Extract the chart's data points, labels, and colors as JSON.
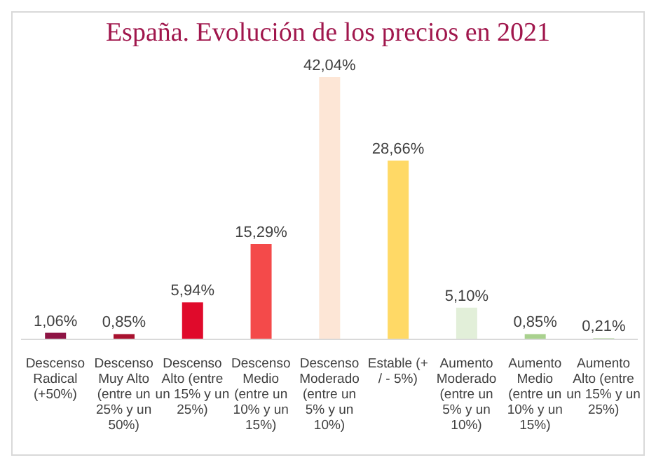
{
  "chart_data": {
    "type": "bar",
    "title": "España. Evolución de los precios en 2021",
    "categories": [
      "Descenso Radical (+50%)",
      "Descenso Muy Alto (entre un 25% y un 50%)",
      "Descenso Alto (entre un 15% y un 25%)",
      "Descenso Medio (entre un 10% y un 15%)",
      "Descenso Moderado (entre un 5% y un 10%)",
      "Estable (+ / - 5%)",
      "Aumento Moderado (entre un 5% y un 10%)",
      "Aumento Medio (entre un 10% y un 15%)",
      "Aumento Alto (entre un 15% y un 25%)"
    ],
    "values": [
      1.06,
      0.85,
      5.94,
      15.29,
      42.04,
      28.66,
      5.1,
      0.85,
      0.21
    ],
    "value_labels": [
      "1,06%",
      "0,85%",
      "5,94%",
      "15,29%",
      "42,04%",
      "28,66%",
      "5,10%",
      "0,85%",
      "0,21%"
    ],
    "colors": [
      "#8e1444",
      "#a8122f",
      "#e00a2b",
      "#f44a4a",
      "#fde6d6",
      "#ffd966",
      "#e2efd9",
      "#a9d18e",
      "#c5e0b3"
    ]
  }
}
